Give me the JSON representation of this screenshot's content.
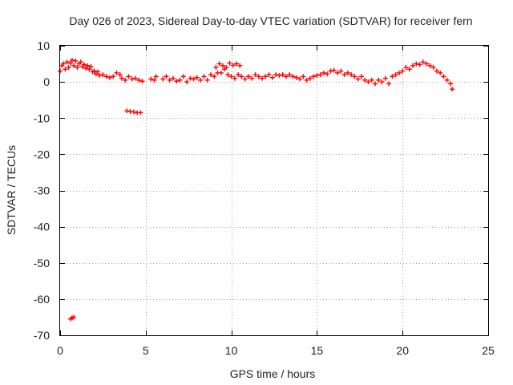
{
  "chart_data": {
    "type": "scatter",
    "title": "Day 026 of 2023, Sidereal Day-to-day VTEC variation (SDTVAR) for receiver fern",
    "xlabel": "GPS time / hours",
    "ylabel": "SDTVAR / TECUs",
    "xlim": [
      0,
      25
    ],
    "ylim": [
      -70,
      10
    ],
    "xticks": [
      0,
      5,
      10,
      15,
      20,
      25
    ],
    "yticks": [
      10,
      0,
      -10,
      -20,
      -30,
      -40,
      -50,
      -60,
      -70
    ],
    "grid": true,
    "color": "#ff0000",
    "series": [
      {
        "name": "SDTVAR",
        "points": [
          [
            0.0,
            3.0
          ],
          [
            0.1,
            4.5
          ],
          [
            0.2,
            5.0
          ],
          [
            0.3,
            3.5
          ],
          [
            0.4,
            5.5
          ],
          [
            0.5,
            4.0
          ],
          [
            0.6,
            5.2
          ],
          [
            0.7,
            6.0
          ],
          [
            0.8,
            4.5
          ],
          [
            0.9,
            5.8
          ],
          [
            1.0,
            4.0
          ],
          [
            1.1,
            5.0
          ],
          [
            1.2,
            5.5
          ],
          [
            1.3,
            4.2
          ],
          [
            1.4,
            4.8
          ],
          [
            1.5,
            3.8
          ],
          [
            1.6,
            4.5
          ],
          [
            1.7,
            3.5
          ],
          [
            1.8,
            4.2
          ],
          [
            1.9,
            2.8
          ],
          [
            2.0,
            3.0
          ],
          [
            2.1,
            2.2
          ],
          [
            2.2,
            2.8
          ],
          [
            2.3,
            1.8
          ],
          [
            2.5,
            2.0
          ],
          [
            2.7,
            1.5
          ],
          [
            2.9,
            1.2
          ],
          [
            3.1,
            1.5
          ],
          [
            3.3,
            2.5
          ],
          [
            3.5,
            2.0
          ],
          [
            3.6,
            1.0
          ],
          [
            3.8,
            0.5
          ],
          [
            4.0,
            1.5
          ],
          [
            4.2,
            0.8
          ],
          [
            4.4,
            1.0
          ],
          [
            4.6,
            0.5
          ],
          [
            4.8,
            0.2
          ],
          [
            5.3,
            0.8
          ],
          [
            5.5,
            0.5
          ],
          [
            5.6,
            1.5
          ],
          [
            6.0,
            0.8
          ],
          [
            6.2,
            1.5
          ],
          [
            6.4,
            0.5
          ],
          [
            6.6,
            1.0
          ],
          [
            6.8,
            0.2
          ],
          [
            7.0,
            0.5
          ],
          [
            7.2,
            1.5
          ],
          [
            7.4,
            0.0
          ],
          [
            7.6,
            1.0
          ],
          [
            7.8,
            0.8
          ],
          [
            8.0,
            1.2
          ],
          [
            8.2,
            0.5
          ],
          [
            8.4,
            1.5
          ],
          [
            8.6,
            0.5
          ],
          [
            8.8,
            2.0
          ],
          [
            9.0,
            1.5
          ],
          [
            9.2,
            2.5
          ],
          [
            9.4,
            2.5
          ],
          [
            9.6,
            3.5
          ],
          [
            9.8,
            2.0
          ],
          [
            9.1,
            4.0
          ],
          [
            9.3,
            5.0
          ],
          [
            9.5,
            4.5
          ],
          [
            9.7,
            4.0
          ],
          [
            9.9,
            5.2
          ],
          [
            10.1,
            4.6
          ],
          [
            10.3,
            5.0
          ],
          [
            10.5,
            4.5
          ],
          [
            10.0,
            1.5
          ],
          [
            10.2,
            1.0
          ],
          [
            10.4,
            2.0
          ],
          [
            10.6,
            1.5
          ],
          [
            10.8,
            0.8
          ],
          [
            11.0,
            1.5
          ],
          [
            11.2,
            1.0
          ],
          [
            11.4,
            2.0
          ],
          [
            11.6,
            1.5
          ],
          [
            11.8,
            1.0
          ],
          [
            12.0,
            1.5
          ],
          [
            12.2,
            2.0
          ],
          [
            12.4,
            1.2
          ],
          [
            12.6,
            2.0
          ],
          [
            12.8,
            1.8
          ],
          [
            13.0,
            2.0
          ],
          [
            13.2,
            1.5
          ],
          [
            13.4,
            2.0
          ],
          [
            13.6,
            1.5
          ],
          [
            13.8,
            1.2
          ],
          [
            14.0,
            0.8
          ],
          [
            14.2,
            1.5
          ],
          [
            14.4,
            0.5
          ],
          [
            14.6,
            1.0
          ],
          [
            14.8,
            1.5
          ],
          [
            15.0,
            1.8
          ],
          [
            15.2,
            2.0
          ],
          [
            15.4,
            2.5
          ],
          [
            15.6,
            2.2
          ],
          [
            15.8,
            3.0
          ],
          [
            16.0,
            3.2
          ],
          [
            16.2,
            2.5
          ],
          [
            16.4,
            3.0
          ],
          [
            16.6,
            2.0
          ],
          [
            16.8,
            2.5
          ],
          [
            17.0,
            2.0
          ],
          [
            17.2,
            1.5
          ],
          [
            17.4,
            0.8
          ],
          [
            17.6,
            1.5
          ],
          [
            17.8,
            0.5
          ],
          [
            18.0,
            0.0
          ],
          [
            18.2,
            0.5
          ],
          [
            18.4,
            -0.5
          ],
          [
            18.6,
            0.5
          ],
          [
            18.8,
            0.0
          ],
          [
            19.0,
            1.0
          ],
          [
            19.2,
            -0.5
          ],
          [
            19.4,
            1.5
          ],
          [
            19.6,
            2.0
          ],
          [
            19.8,
            2.5
          ],
          [
            20.0,
            3.0
          ],
          [
            20.2,
            4.0
          ],
          [
            20.4,
            3.5
          ],
          [
            20.6,
            4.5
          ],
          [
            20.8,
            5.0
          ],
          [
            21.0,
            4.8
          ],
          [
            21.2,
            5.5
          ],
          [
            21.4,
            5.0
          ],
          [
            21.6,
            4.5
          ],
          [
            21.8,
            4.0
          ],
          [
            22.0,
            3.0
          ],
          [
            22.2,
            2.5
          ],
          [
            22.4,
            1.5
          ],
          [
            22.6,
            0.5
          ],
          [
            22.8,
            -0.5
          ],
          [
            22.9,
            -2.0
          ],
          [
            3.9,
            -8.0
          ],
          [
            4.1,
            -8.2
          ],
          [
            4.3,
            -8.3
          ],
          [
            4.5,
            -8.5
          ],
          [
            4.7,
            -8.5
          ],
          [
            0.6,
            -65.5
          ],
          [
            0.7,
            -65.2
          ],
          [
            0.8,
            -65.0
          ]
        ]
      }
    ]
  }
}
